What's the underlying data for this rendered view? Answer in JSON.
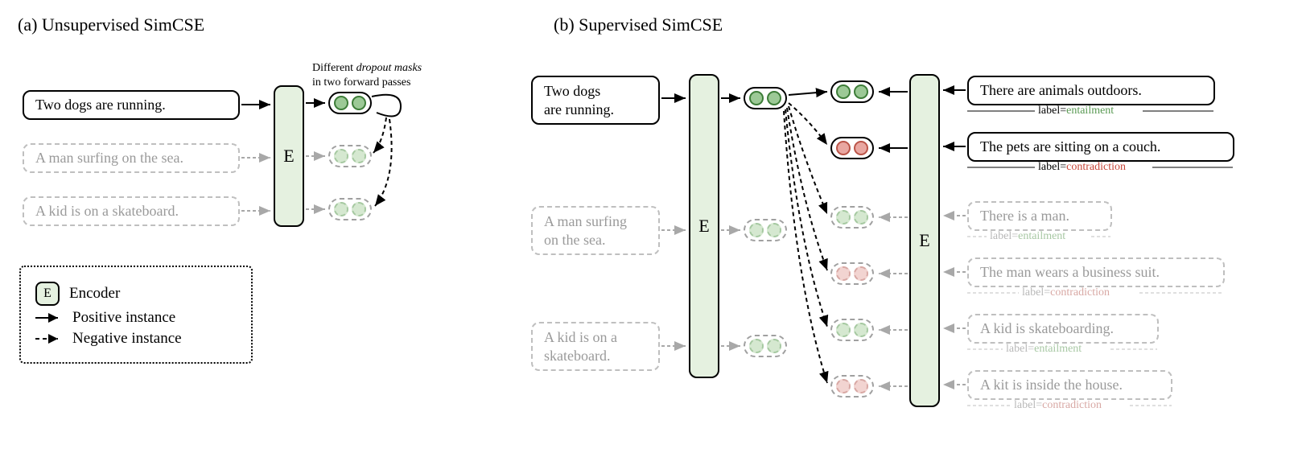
{
  "titles": {
    "a": "(a) Unsupervised SimCSE",
    "b": "(b) Supervised SimCSE"
  },
  "caption_a": "Different dropout masks\nin two forward passes",
  "panel_a": {
    "sentences": [
      {
        "text": "Two dogs are running.",
        "style": "solid"
      },
      {
        "text": "A man surfing on the sea.",
        "style": "dashed"
      },
      {
        "text": "A kid is on a skateboard.",
        "style": "dashed"
      }
    ],
    "encoder_label": "E",
    "embeddings": [
      {
        "style": "solid",
        "color": "green-solid"
      },
      {
        "style": "dashed",
        "color": "green-dashed"
      },
      {
        "style": "dashed",
        "color": "green-dashed"
      }
    ]
  },
  "panel_b": {
    "left_sentences": [
      {
        "text": "Two dogs\nare running.",
        "style": "solid"
      },
      {
        "text": "A man surfing\non the sea.",
        "style": "dashed"
      },
      {
        "text": "A kid is on a\nskateboard.",
        "style": "dashed"
      }
    ],
    "right_sentences": [
      {
        "text": "There are animals outdoors.",
        "style": "solid",
        "label": "entailment",
        "label_color": "label-green"
      },
      {
        "text": "The pets are sitting on a couch.",
        "style": "solid",
        "label": "contradiction",
        "label_color": "label-red"
      },
      {
        "text": "There is a man.",
        "style": "dashed",
        "label": "entailment",
        "label_color": "label-gray-green"
      },
      {
        "text": "The man wears a business suit.",
        "style": "dashed",
        "label": "contradiction",
        "label_color": "label-gray-red"
      },
      {
        "text": "A kid is skateboarding.",
        "style": "dashed",
        "label": "entailment",
        "label_color": "label-gray-green"
      },
      {
        "text": "A kit is inside the house.",
        "style": "dashed",
        "label": "contradiction",
        "label_color": "label-gray-red"
      }
    ],
    "encoder_label": "E",
    "left_embeddings": [
      {
        "style": "solid",
        "color": "green-solid"
      },
      {
        "style": "dashed",
        "color": "green-dashed"
      },
      {
        "style": "dashed",
        "color": "green-dashed"
      }
    ],
    "right_embeddings": [
      {
        "style": "solid",
        "color": "green-solid"
      },
      {
        "style": "solid",
        "color": "red-solid"
      },
      {
        "style": "dashed",
        "color": "green-dashed"
      },
      {
        "style": "dashed",
        "color": "red-dashed"
      },
      {
        "style": "dashed",
        "color": "green-dashed"
      },
      {
        "style": "dashed",
        "color": "red-dashed"
      }
    ]
  },
  "legend": {
    "encoder": "Encoder",
    "positive": "Positive instance",
    "negative": "Negative instance",
    "enc_label": "E"
  },
  "label_prefix": "label=",
  "colors": {
    "solid_border": "#000000",
    "dashed_border": "#bfbfbf",
    "encoder_fill": "#e5f1e0",
    "green_fill": "#9cc996",
    "green_border": "#3d7d38",
    "red_fill": "#e9a7a1",
    "red_border": "#bb5549",
    "entailment": "#5a9a54",
    "contradiction": "#c74538"
  }
}
